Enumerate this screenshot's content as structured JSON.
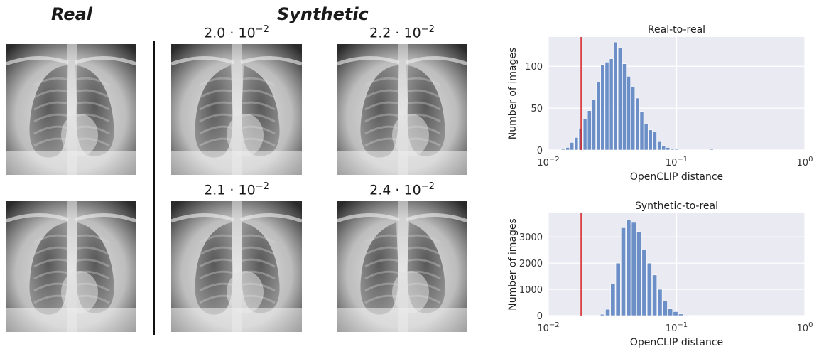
{
  "figure": {
    "real_heading": "Real",
    "synthetic_heading": "Synthetic",
    "synthetic_distances": [
      {
        "mantissa": "2.0",
        "exponent": "−2"
      },
      {
        "mantissa": "2.2",
        "exponent": "−2"
      },
      {
        "mantissa": "2.1",
        "exponent": "−2"
      },
      {
        "mantissa": "2.4",
        "exponent": "−2"
      }
    ],
    "images": {
      "real": [
        "chest x-ray",
        "chest x-ray"
      ],
      "synthetic": [
        "chest x-ray",
        "chest x-ray",
        "chest x-ray",
        "chest x-ray"
      ]
    }
  },
  "colors": {
    "bar": "#6d8fc7",
    "threshold": "#d62020",
    "plot_bg": "#eaeaf2",
    "grid": "#ffffff"
  },
  "chart_data": [
    {
      "type": "bar",
      "title": "Real-to-real",
      "xlabel": "OpenCLIP distance",
      "ylabel": "Number of images",
      "xscale": "log",
      "xlim": [
        0.01,
        1
      ],
      "ylim": [
        0,
        135
      ],
      "xticks": [
        {
          "base": "10",
          "exp": "−2",
          "value": 0.01
        },
        {
          "base": "10",
          "exp": "−1",
          "value": 0.1
        },
        {
          "base": "10",
          "exp": "0",
          "value": 1
        }
      ],
      "yticks": [
        0,
        50,
        100
      ],
      "grid": true,
      "threshold": 0.018,
      "bin_edges": [
        0.0126,
        0.0137,
        0.0148,
        0.016,
        0.0173,
        0.0187,
        0.0202,
        0.0219,
        0.0237,
        0.0256,
        0.0277,
        0.03,
        0.0324,
        0.035,
        0.0379,
        0.041,
        0.0443,
        0.0479,
        0.0518,
        0.056,
        0.0606,
        0.0655,
        0.0709,
        0.0766,
        0.0829,
        0.0896,
        0.0969,
        0.1048,
        0.1133,
        0.1226,
        0.1326,
        0.1433,
        0.155,
        0.1676,
        0.1813,
        0.1961,
        0.212
      ],
      "counts": [
        1,
        3,
        9,
        15,
        26,
        37,
        47,
        60,
        81,
        102,
        105,
        109,
        129,
        122,
        103,
        88,
        75,
        62,
        46,
        31,
        24,
        22,
        10,
        5,
        3,
        1,
        1,
        0,
        0,
        0,
        0,
        0,
        0,
        0,
        1,
        0
      ]
    },
    {
      "type": "bar",
      "title": "Synthetic-to-real",
      "xlabel": "OpenCLIP distance",
      "ylabel": "Number of images",
      "xscale": "log",
      "xlim": [
        0.01,
        1
      ],
      "ylim": [
        0,
        3900
      ],
      "xticks": [
        {
          "base": "10",
          "exp": "−2",
          "value": 0.01
        },
        {
          "base": "10",
          "exp": "−1",
          "value": 0.1
        },
        {
          "base": "10",
          "exp": "0",
          "value": 1
        }
      ],
      "yticks": [
        0,
        1000,
        2000,
        3000
      ],
      "grid": true,
      "threshold": 0.018,
      "bin_edges": [
        0.0254,
        0.0279,
        0.0306,
        0.0336,
        0.0369,
        0.0405,
        0.0445,
        0.0489,
        0.0537,
        0.059,
        0.0648,
        0.0711,
        0.0781,
        0.0858,
        0.0942,
        0.1035,
        0.1137,
        0.1249,
        0.1372,
        0.1507
      ],
      "counts": [
        50,
        240,
        1200,
        2000,
        3350,
        3650,
        3550,
        3200,
        2500,
        2000,
        1550,
        1000,
        550,
        280,
        150,
        60,
        20,
        10,
        5
      ]
    }
  ]
}
